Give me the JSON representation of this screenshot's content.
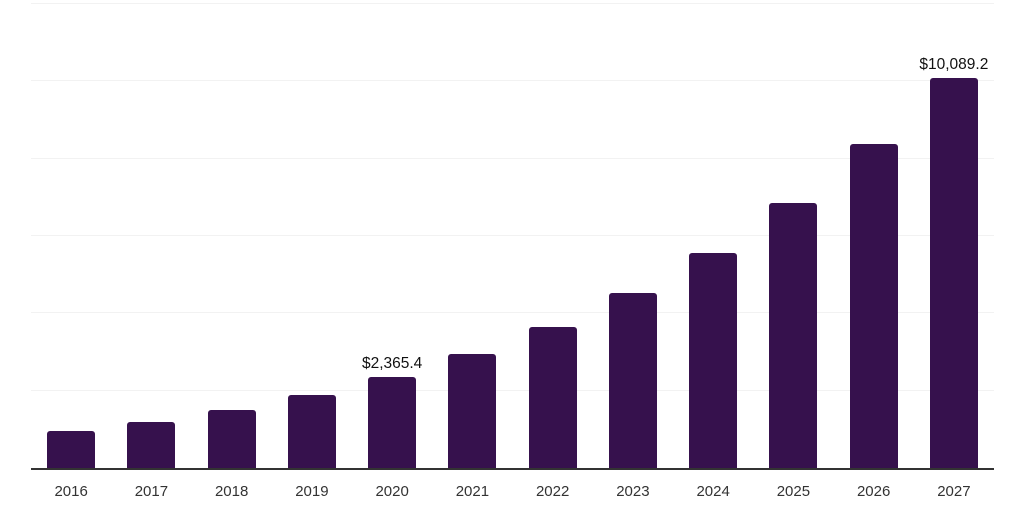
{
  "chart": {
    "background": "#ffffff",
    "bar_color": "#36114D",
    "grid_color": "#f2f2f2",
    "axis_color": "#333333",
    "tick_label_color": "#333333",
    "annotation_color": "#111111"
  },
  "chart_data": {
    "type": "bar",
    "title": "",
    "xlabel": "",
    "ylabel": "",
    "categories": [
      "2016",
      "2017",
      "2018",
      "2019",
      "2020",
      "2021",
      "2022",
      "2023",
      "2024",
      "2025",
      "2026",
      "2027"
    ],
    "values": [
      950,
      1180,
      1490,
      1900,
      2365.4,
      2950,
      3650,
      4530,
      5560,
      6860,
      8380,
      10089.2
    ],
    "ylim": [
      0,
      12000
    ],
    "grid_interval": 2000,
    "grid": true,
    "legend": false,
    "y_axis_labels_visible": false,
    "annotations": [
      {
        "category": "2020",
        "text": "$2,365.4"
      },
      {
        "category": "2027",
        "text": "$10,089.2"
      }
    ]
  }
}
